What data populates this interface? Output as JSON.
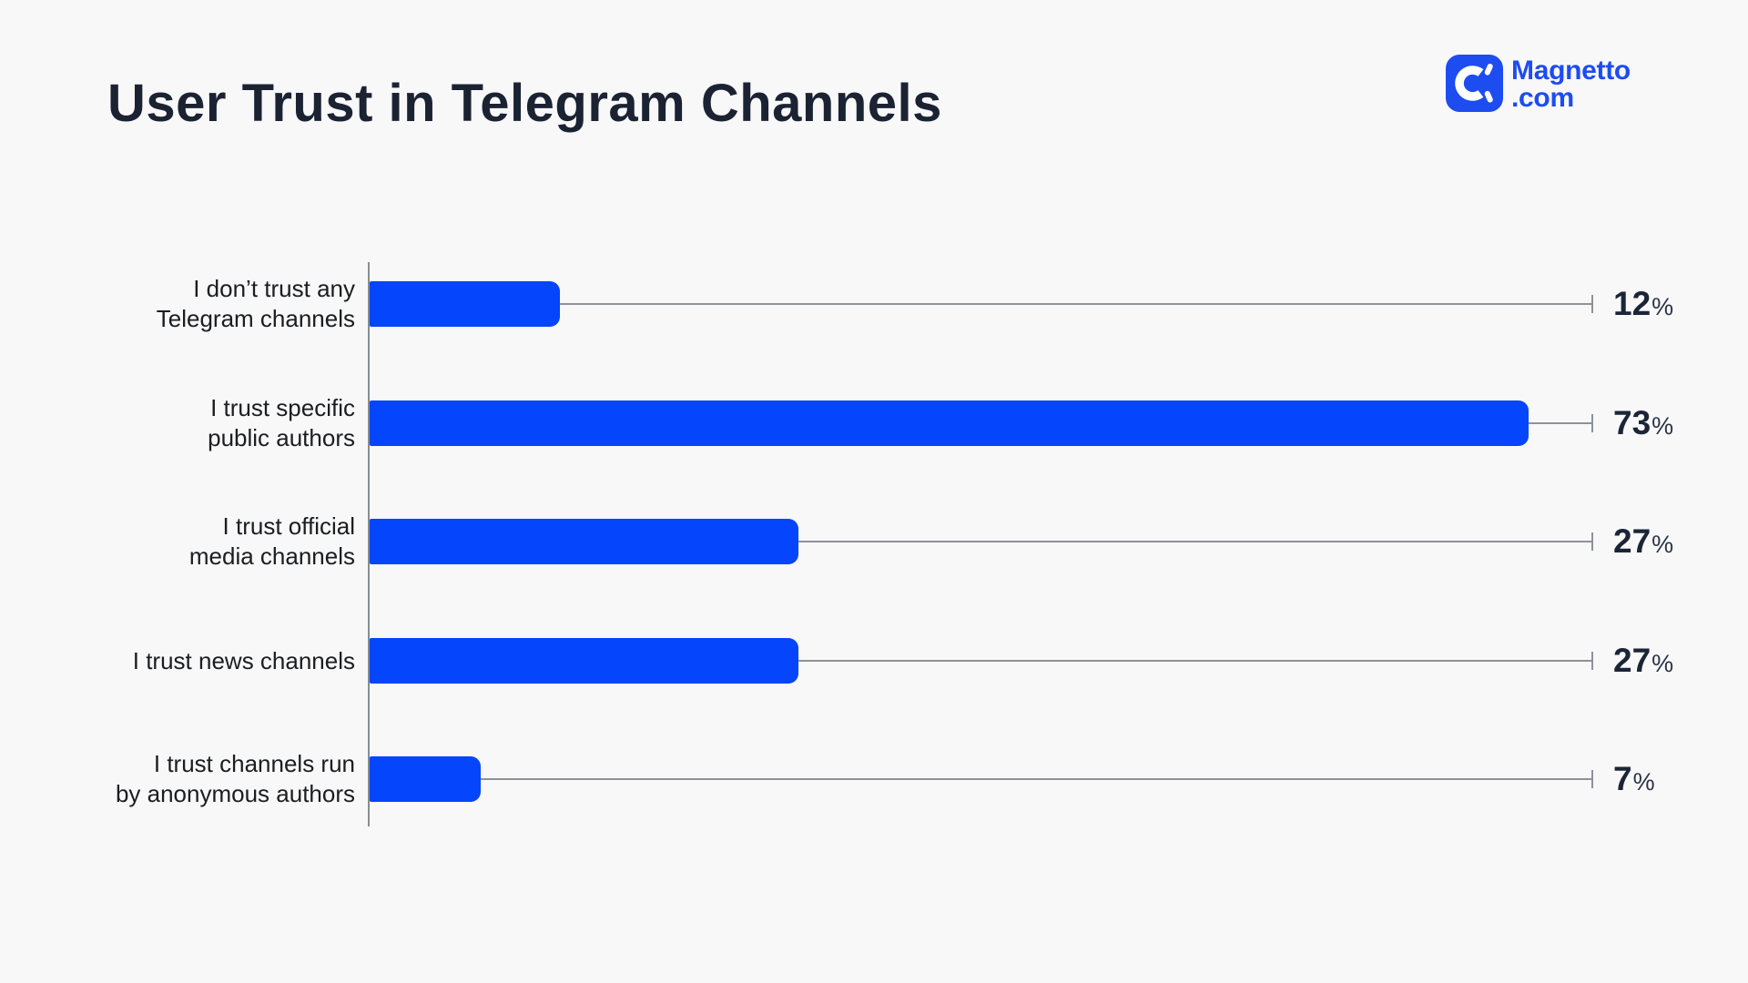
{
  "page": {
    "background": "#f8f8f9"
  },
  "header": {
    "logo": {
      "brand": "Magnetto",
      "domain": ".com",
      "icon": "magnet-icon",
      "color": "#1d4cf0"
    }
  },
  "chart_data": {
    "type": "bar",
    "orientation": "horizontal",
    "title": "User Trust in Telegram Channels",
    "categories": [
      "I don’t trust any Telegram channels",
      "I trust specific public authors",
      "I trust official media channels",
      "I trust news channels",
      "I trust channels run by anonymous authors"
    ],
    "display_labels": [
      [
        "I don’t trust any",
        "Telegram channels"
      ],
      [
        "I trust specific",
        "public authors"
      ],
      [
        "I trust official",
        "media channels"
      ],
      [
        "I trust news channels"
      ],
      [
        "I trust channels run",
        "by anonymous authors"
      ]
    ],
    "values": [
      12,
      73,
      27,
      27,
      7
    ],
    "unit": "%",
    "xlim": [
      0,
      77
    ],
    "grid": false,
    "legend": false,
    "bar_color": "#0545fb",
    "title_color": "#1b2333",
    "label_color": "#1c1d20",
    "value_color": "#1b2537",
    "line_color": "#8d9299",
    "axis_color": "#868d95"
  }
}
